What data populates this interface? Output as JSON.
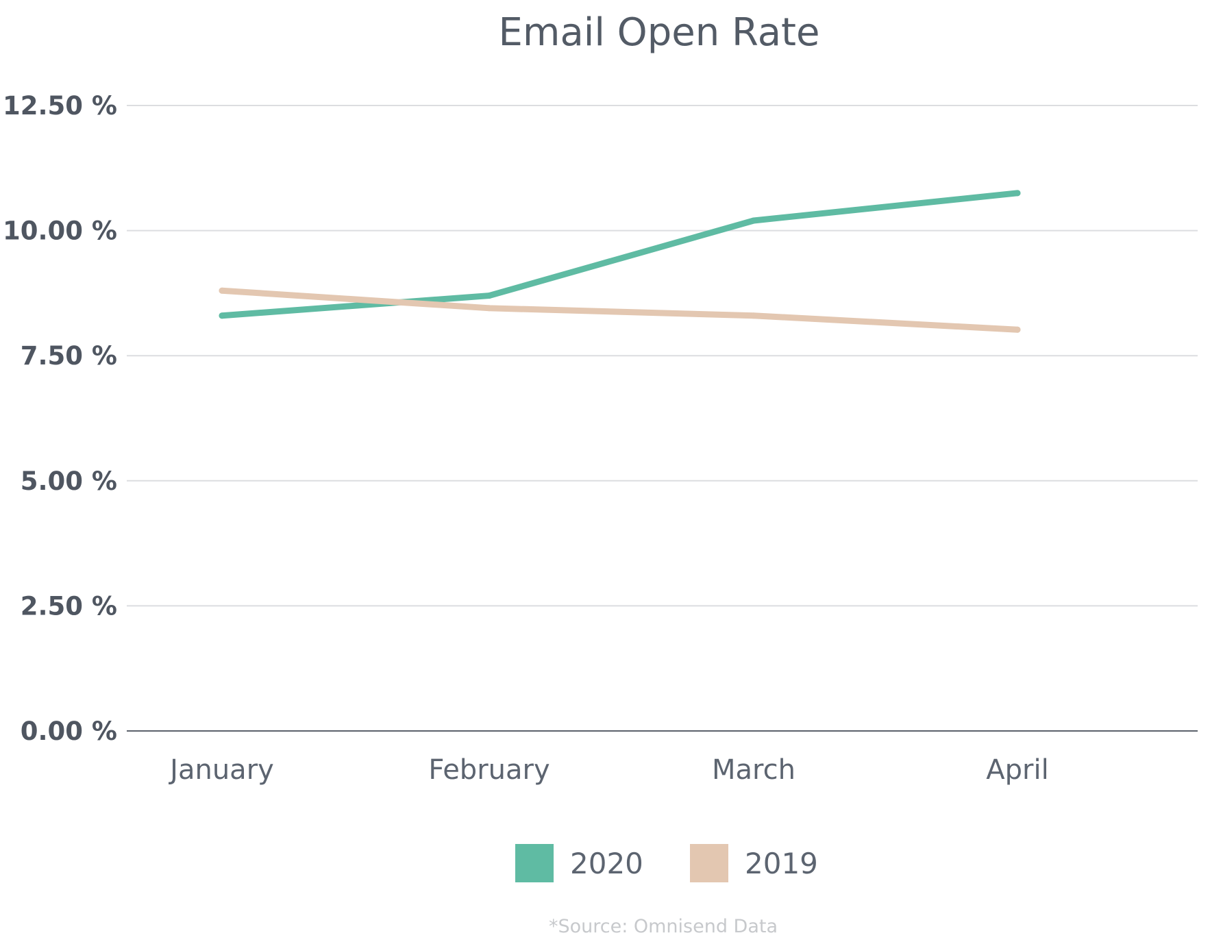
{
  "chart_data": {
    "type": "line",
    "title": "Email Open Rate",
    "categories": [
      "January",
      "February",
      "March",
      "April"
    ],
    "series": [
      {
        "name": "2020",
        "color": "#5fbba3",
        "values": [
          8.3,
          8.7,
          10.2,
          10.75
        ]
      },
      {
        "name": "2019",
        "color": "#e3c7b1",
        "values": [
          8.8,
          8.45,
          8.3,
          8.02
        ]
      }
    ],
    "yticks": [
      "0.00 %",
      "2.50 %",
      "5.00 %",
      "7.50 %",
      "10.00 %",
      "12.50 %"
    ],
    "ylim": [
      0,
      12.5
    ],
    "grid": true,
    "legend_position": "bottom",
    "source_note": "*Source: Omnisend Data"
  }
}
